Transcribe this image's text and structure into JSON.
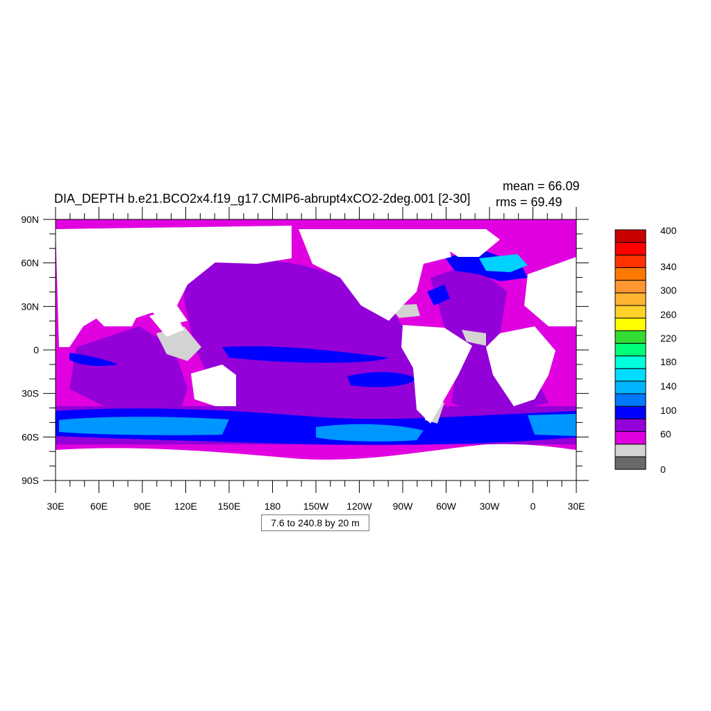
{
  "title": "DIA_DEPTH b.e21.BCO2x4.f19_g17.CMIP6-abrupt4xCO2-2deg.001 [2-30]",
  "stats": {
    "mean": "mean = 66.09",
    "rms": "rms = 69.49"
  },
  "lat_labels": [
    "90N",
    "60N",
    "30N",
    "0",
    "30S",
    "60S",
    "90S"
  ],
  "lon_labels": [
    "30E",
    "60E",
    "90E",
    "120E",
    "150E",
    "180",
    "150W",
    "120W",
    "90W",
    "60W",
    "30W",
    "0",
    "30E"
  ],
  "contour_info": "7.6 to 240.8 by 20 m",
  "colorbar": {
    "colors": [
      "#696969",
      "#d3d3d3",
      "#e000e0",
      "#9300d8",
      "#0000ff",
      "#0078ff",
      "#00b4ff",
      "#00dcff",
      "#00ffdc",
      "#00ff78",
      "#32dc32",
      "#ffff00",
      "#ffd22a",
      "#ffb432",
      "#ff9632",
      "#ff7800",
      "#ff3200",
      "#ff0000",
      "#c80000"
    ],
    "labels": [
      "0",
      "60",
      "100",
      "140",
      "180",
      "220",
      "260",
      "300",
      "340",
      "400"
    ]
  },
  "land_color": "#ffffff",
  "map_legend_colors": {
    "shallow_low": "#696969",
    "shallow": "#d3d3d3",
    "mid": "#e000e0",
    "deep": "#9300d8",
    "very_deep": "#0000ff",
    "deepest": "#0096ff"
  }
}
